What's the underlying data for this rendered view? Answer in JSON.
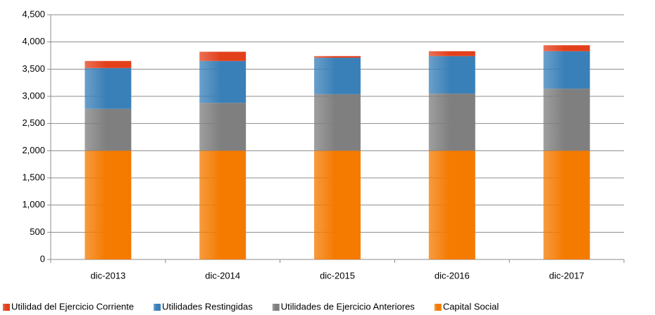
{
  "chart_data": {
    "type": "stacked_bar",
    "categories": [
      "dic-2013",
      "dic-2014",
      "dic-2015",
      "dic-2016",
      "dic-2017"
    ],
    "series": [
      {
        "name": "Utilidad del Ejercicio Corriente",
        "color": "#e2401b",
        "values": [
          130,
          170,
          30,
          90,
          110
        ]
      },
      {
        "name": "Utilidades Restingidas",
        "color": "#3a80b8",
        "values": [
          750,
          770,
          670,
          690,
          690
        ]
      },
      {
        "name": "Utilidades de Ejercicio Anteriores",
        "color": "#7f7f7f",
        "values": [
          770,
          880,
          1040,
          1050,
          1140
        ]
      },
      {
        "name": "Capital Social",
        "color": "#f47a00",
        "values": [
          2000,
          2000,
          2000,
          2000,
          2000
        ]
      }
    ],
    "ylim": [
      0,
      4500
    ],
    "yticks": [
      0,
      500,
      {
        "value": 1000,
        "label": "1,000"
      },
      {
        "value": 1500,
        "label": "1,500"
      },
      {
        "value": 2000,
        "label": "2,000"
      },
      {
        "value": 2500,
        "label": "2,500"
      },
      {
        "value": 3000,
        "label": "3,000"
      },
      {
        "value": 3500,
        "label": "3,500"
      },
      {
        "value": 4000,
        "label": "4,000"
      },
      {
        "value": 4500,
        "label": "4,500"
      }
    ],
    "grid": true,
    "legend": "bottom"
  }
}
